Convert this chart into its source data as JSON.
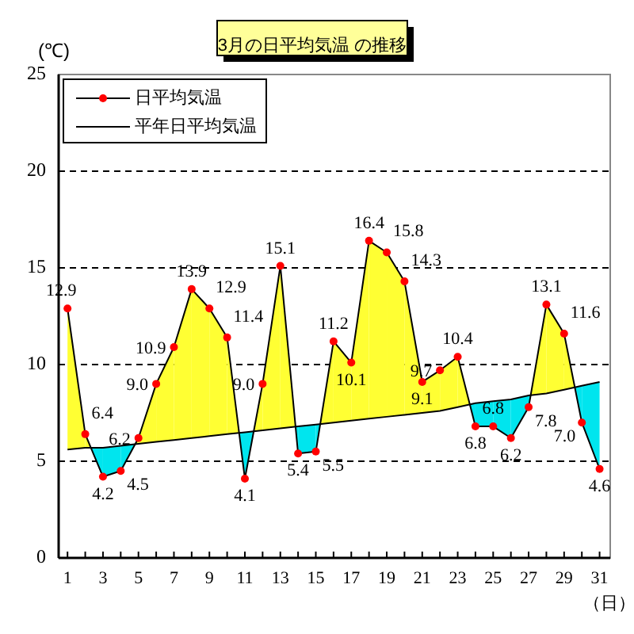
{
  "chart_data": {
    "type": "line",
    "title": "3月の日平均気温 の推移",
    "annotations": [
      "(℃)"
    ],
    "xlabel": "（日）",
    "x": [
      1,
      2,
      3,
      4,
      5,
      6,
      7,
      8,
      9,
      10,
      11,
      12,
      13,
      14,
      15,
      16,
      17,
      18,
      19,
      20,
      21,
      22,
      23,
      24,
      25,
      26,
      27,
      28,
      29,
      30,
      31
    ],
    "series": [
      {
        "name": "日平均気温",
        "color": "#ff0000",
        "marker": "circle",
        "values": [
          12.9,
          6.4,
          4.2,
          4.5,
          6.2,
          9.0,
          10.9,
          13.9,
          12.9,
          11.4,
          4.1,
          9.0,
          15.1,
          5.4,
          5.5,
          11.2,
          10.1,
          16.4,
          15.8,
          14.3,
          9.1,
          9.7,
          10.4,
          6.8,
          6.8,
          6.2,
          7.8,
          13.1,
          11.6,
          7.0,
          4.6
        ],
        "value_labels": [
          "12.9",
          "6.4",
          "4.2",
          "4.5",
          "6.2",
          "9.0",
          "10.9",
          "13.9",
          "12.9",
          "11.4",
          "4.1",
          "9.0",
          "15.1",
          "5.4",
          "5.5",
          "11.2",
          "10.1",
          "16.4",
          "15.8",
          "14.3",
          "9.1",
          "9.7",
          "10.4",
          "6.8",
          "6.8",
          "6.2",
          "7.8",
          "13.1",
          "11.6",
          "7.0",
          "4.6"
        ]
      },
      {
        "name": "平年日平均気温",
        "color": "#000000",
        "values": [
          5.6,
          5.7,
          5.7,
          5.8,
          5.9,
          6.0,
          6.1,
          6.2,
          6.3,
          6.4,
          6.5,
          6.6,
          6.7,
          6.8,
          6.9,
          7.0,
          7.1,
          7.2,
          7.3,
          7.4,
          7.5,
          7.6,
          7.8,
          8.0,
          8.1,
          8.2,
          8.4,
          8.5,
          8.7,
          8.9,
          9.1
        ]
      }
    ],
    "xlim": [
      0.5,
      31.6
    ],
    "ylim": [
      0,
      25
    ],
    "xticks": [
      1,
      {
        "value": 2,
        "label": null
      },
      3,
      {
        "value": 4,
        "label": null
      },
      5,
      {
        "value": 6,
        "label": null
      },
      7,
      {
        "value": 8,
        "label": null
      },
      9,
      {
        "value": 10,
        "label": null
      },
      11,
      {
        "value": 12,
        "label": null
      },
      13,
      {
        "value": 14,
        "label": null
      },
      15,
      {
        "value": 16,
        "label": null
      },
      17,
      {
        "value": 18,
        "label": null
      },
      19,
      {
        "value": 20,
        "label": null
      },
      21,
      {
        "value": 22,
        "label": null
      },
      23,
      {
        "value": 24,
        "label": null
      },
      25,
      {
        "value": 26,
        "label": null
      },
      27,
      {
        "value": 28,
        "label": null
      },
      29,
      {
        "value": 30,
        "label": null
      },
      31
    ],
    "yticks": [
      0,
      5,
      10,
      15,
      20,
      25
    ],
    "grid": "y",
    "line_style": "solid",
    "legend": "top left"
  }
}
